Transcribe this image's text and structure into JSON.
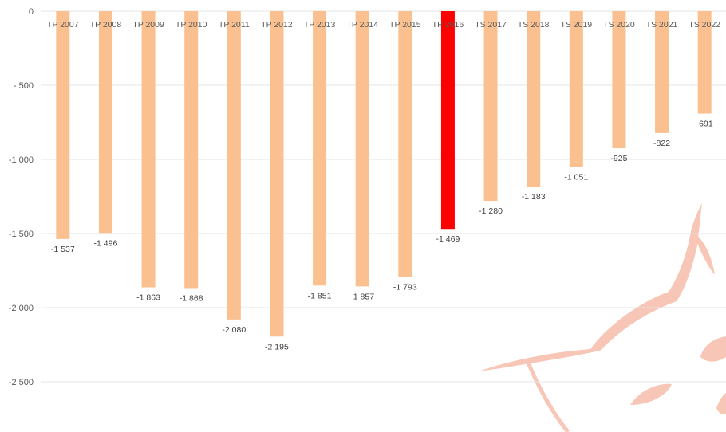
{
  "chart_data": {
    "type": "bar",
    "categories": [
      "TP 2007",
      "TP 2008",
      "TP 2009",
      "TP 2010",
      "TP 2011",
      "TP 2012",
      "TP 2013",
      "TP 2014",
      "TP 2015",
      "TP 2016",
      "TS 2017",
      "TS 2018",
      "TS 2019",
      "TS 2020",
      "TS 2021",
      "TS 2022"
    ],
    "values": [
      -1537,
      -1496,
      -1863,
      -1868,
      -2080,
      -2195,
      -1851,
      -1857,
      -1793,
      -1469,
      -1280,
      -1183,
      -1051,
      -925,
      -822,
      -691
    ],
    "data_labels": [
      "-1 537",
      "-1 496",
      "-1 863",
      "-1 868",
      "-2 080",
      "-2 195",
      "-1 851",
      "-1 857",
      "-1 793",
      "-1 469",
      "-1 280",
      "-1 183",
      "-1 051",
      "-925",
      "-822",
      "-691"
    ],
    "highlight_index": 9,
    "ylim": [
      -2800,
      0
    ],
    "y_ticks": [
      0,
      -500,
      -1000,
      -1500,
      -2000,
      -2500
    ],
    "y_tick_labels": [
      "0",
      "- 500",
      "-1 000",
      "-1 500",
      "-2 000",
      "-2 500"
    ],
    "grid": true,
    "title": "",
    "xlabel": "",
    "ylabel": "",
    "colors": {
      "bar": "#FAC090",
      "highlight": "#FF0000",
      "grid": "#e6e6e6",
      "watermark": "#F6B9A4"
    }
  }
}
